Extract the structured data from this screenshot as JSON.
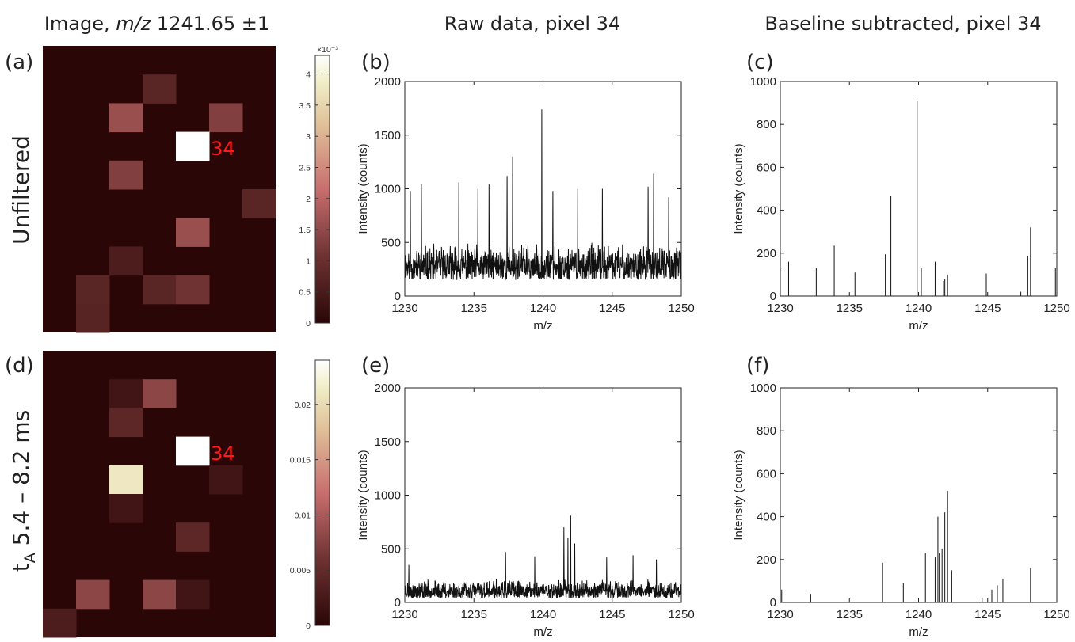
{
  "titles": {
    "images": "Image, m/z 1241.65 ±1",
    "images_prefix": "Image, ",
    "images_italic": "m/z",
    "images_suffix": " 1241.65 ±1",
    "raw": "Raw data, pixel 34",
    "baseline": "Baseline subtracted, pixel 34"
  },
  "row_labels": {
    "top": "Unfiltered",
    "bottom_main": "t",
    "bottom_sub": "A",
    "bottom_rest": " 5.4 – 8.2 ms"
  },
  "panel_labels": [
    "(a)",
    "(b)",
    "(c)",
    "(d)",
    "(e)",
    "(f)"
  ],
  "colors": {
    "background": "#2b0606",
    "peak_pixel": "#ffffff",
    "annotation": "#ff1a1a",
    "line": "#111111"
  },
  "chart_data": [
    {
      "id": "a",
      "type": "heatmap",
      "grid": [
        7,
        10
      ],
      "highlight_label": "34",
      "highlight_cell": [
        4,
        3
      ],
      "colorbar": {
        "exponent_label": "×10⁻³",
        "ticks": [
          0,
          0.5,
          1,
          1.5,
          2,
          2.5,
          3,
          3.5,
          4
        ],
        "tick_labels": [
          "0",
          "0.5",
          "1",
          "1.5",
          "2",
          "2.5",
          "3",
          "3.5",
          "4"
        ],
        "max": 4.3
      },
      "cells": [
        {
          "col": 3,
          "row": 1,
          "value": 0.75
        },
        {
          "col": 2,
          "row": 2,
          "value": 1.6
        },
        {
          "col": 5,
          "row": 2,
          "value": 1.3
        },
        {
          "col": 4,
          "row": 3,
          "value": 4.3
        },
        {
          "col": 2,
          "row": 4,
          "value": 1.3
        },
        {
          "col": 6,
          "row": 5,
          "value": 0.75
        },
        {
          "col": 4,
          "row": 6,
          "value": 1.6
        },
        {
          "col": 2,
          "row": 7,
          "value": 0.55
        },
        {
          "col": 1,
          "row": 8,
          "value": 0.75
        },
        {
          "col": 3,
          "row": 8,
          "value": 0.75
        },
        {
          "col": 4,
          "row": 8,
          "value": 1.1
        },
        {
          "col": 1,
          "row": 9,
          "value": 0.7
        }
      ]
    },
    {
      "id": "d",
      "type": "heatmap",
      "grid": [
        7,
        10
      ],
      "highlight_label": "34",
      "highlight_cell": [
        4,
        3
      ],
      "colorbar": {
        "exponent_label": "",
        "ticks": [
          0,
          0.005,
          0.01,
          0.015,
          0.02
        ],
        "tick_labels": [
          "0",
          "0.005",
          "0.01",
          "0.015",
          "0.02"
        ],
        "max": 0.024
      },
      "cells": [
        {
          "col": 2,
          "row": 1,
          "value": 0.002
        },
        {
          "col": 3,
          "row": 1,
          "value": 0.008
        },
        {
          "col": 2,
          "row": 2,
          "value": 0.0045
        },
        {
          "col": 4,
          "row": 3,
          "value": 0.024
        },
        {
          "col": 2,
          "row": 4,
          "value": 0.021
        },
        {
          "col": 5,
          "row": 4,
          "value": 0.002
        },
        {
          "col": 2,
          "row": 5,
          "value": 0.002
        },
        {
          "col": 4,
          "row": 6,
          "value": 0.0045
        },
        {
          "col": 1,
          "row": 8,
          "value": 0.008
        },
        {
          "col": 3,
          "row": 8,
          "value": 0.008
        },
        {
          "col": 4,
          "row": 8,
          "value": 0.002
        },
        {
          "col": 0,
          "row": 9,
          "value": 0.003
        }
      ]
    },
    {
      "id": "b",
      "type": "line",
      "xlabel": "m/z",
      "ylabel": "Intensity (counts)",
      "xlim": [
        1230,
        1250
      ],
      "ylim": [
        0,
        2000
      ],
      "xticks": [
        1230,
        1235,
        1240,
        1245,
        1250
      ],
      "yticks": [
        0,
        500,
        1000,
        1500,
        2000
      ],
      "noise": {
        "base": 150,
        "amp": 350,
        "seed": 11
      },
      "peaks": [
        [
          1230.4,
          980
        ],
        [
          1231.2,
          1040
        ],
        [
          1233.9,
          1060
        ],
        [
          1235.3,
          1000
        ],
        [
          1236.1,
          1040
        ],
        [
          1237.4,
          1120
        ],
        [
          1237.8,
          1300
        ],
        [
          1239.9,
          1740
        ],
        [
          1240.7,
          980
        ],
        [
          1242.5,
          1000
        ],
        [
          1244.3,
          1000
        ],
        [
          1247.6,
          1020
        ],
        [
          1248.0,
          1140
        ],
        [
          1249.1,
          920
        ]
      ]
    },
    {
      "id": "c",
      "type": "line",
      "xlabel": "m/z",
      "ylabel": "Intensity (counts)",
      "xlim": [
        1230,
        1250
      ],
      "ylim": [
        0,
        1000
      ],
      "xticks": [
        1230,
        1235,
        1240,
        1245,
        1250
      ],
      "yticks": [
        0,
        200,
        400,
        600,
        800,
        1000
      ],
      "peaks": [
        [
          1230.2,
          130
        ],
        [
          1230.6,
          160
        ],
        [
          1232.6,
          130
        ],
        [
          1233.9,
          235
        ],
        [
          1235.4,
          110
        ],
        [
          1237.6,
          195
        ],
        [
          1238.0,
          465
        ],
        [
          1239.9,
          910
        ],
        [
          1240.2,
          130
        ],
        [
          1241.2,
          160
        ],
        [
          1241.8,
          70
        ],
        [
          1241.9,
          80
        ],
        [
          1242.1,
          100
        ],
        [
          1244.9,
          105
        ],
        [
          1247.4,
          20
        ],
        [
          1247.9,
          185
        ],
        [
          1248.1,
          320
        ],
        [
          1249.9,
          130
        ]
      ]
    },
    {
      "id": "e",
      "type": "line",
      "xlabel": "m/z",
      "ylabel": "Intensity (counts)",
      "xlim": [
        1230,
        1250
      ],
      "ylim": [
        0,
        2000
      ],
      "xticks": [
        1230,
        1235,
        1240,
        1245,
        1250
      ],
      "yticks": [
        0,
        500,
        1000,
        1500,
        2000
      ],
      "noise": {
        "base": 40,
        "amp": 180,
        "seed": 23
      },
      "peaks": [
        [
          1230.3,
          350
        ],
        [
          1237.3,
          470
        ],
        [
          1239.4,
          430
        ],
        [
          1241.5,
          700
        ],
        [
          1241.8,
          600
        ],
        [
          1242.0,
          810
        ],
        [
          1242.3,
          550
        ],
        [
          1244.6,
          420
        ],
        [
          1246.5,
          440
        ],
        [
          1248.2,
          400
        ]
      ]
    },
    {
      "id": "f",
      "type": "line",
      "xlabel": "m/z",
      "ylabel": "Intensity (counts)",
      "xlim": [
        1230,
        1250
      ],
      "ylim": [
        0,
        1000
      ],
      "xticks": [
        1230,
        1235,
        1240,
        1245,
        1250
      ],
      "yticks": [
        0,
        200,
        400,
        600,
        800,
        1000
      ],
      "peaks": [
        [
          1230.1,
          60
        ],
        [
          1232.2,
          40
        ],
        [
          1237.4,
          185
        ],
        [
          1238.9,
          90
        ],
        [
          1240.5,
          230
        ],
        [
          1241.2,
          210
        ],
        [
          1241.4,
          400
        ],
        [
          1241.5,
          230
        ],
        [
          1241.7,
          250
        ],
        [
          1241.9,
          420
        ],
        [
          1242.1,
          520
        ],
        [
          1242.4,
          150
        ],
        [
          1244.6,
          20
        ],
        [
          1245.3,
          60
        ],
        [
          1245.7,
          80
        ],
        [
          1246.1,
          110
        ],
        [
          1248.1,
          160
        ]
      ]
    }
  ]
}
